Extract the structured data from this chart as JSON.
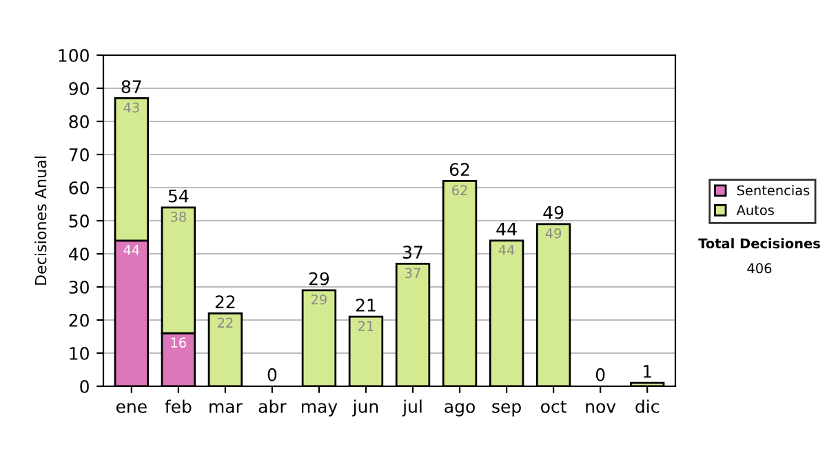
{
  "chart_data": {
    "type": "bar",
    "stacked": true,
    "ylabel": "Decisiones Anual",
    "categories": [
      "ene",
      "feb",
      "mar",
      "abr",
      "may",
      "jun",
      "jul",
      "ago",
      "sep",
      "oct",
      "nov",
      "dic"
    ],
    "series": [
      {
        "name": "Sentencias",
        "color": "#dd77bb",
        "values": [
          44,
          16,
          0,
          0,
          0,
          0,
          0,
          0,
          0,
          0,
          0,
          0
        ],
        "value_labels": [
          "44",
          "16",
          null,
          null,
          null,
          null,
          null,
          null,
          null,
          null,
          null,
          null
        ]
      },
      {
        "name": "Autos",
        "color": "#d4ea90",
        "values": [
          43,
          38,
          22,
          0,
          29,
          21,
          37,
          62,
          44,
          49,
          0,
          1
        ],
        "value_labels": [
          "43",
          "38",
          "22",
          null,
          "29",
          "21",
          "37",
          "62",
          "44",
          "49",
          null,
          null
        ]
      }
    ],
    "totals": [
      "87",
      "54",
      "22",
      "0",
      "29",
      "21",
      "37",
      "62",
      "44",
      "49",
      "0",
      "1"
    ],
    "ylim": [
      0,
      100
    ],
    "yticks": [
      0,
      10,
      20,
      30,
      40,
      50,
      60,
      70,
      80,
      90,
      100
    ],
    "grid": "y",
    "legend": "right",
    "annotations": [
      "Total Decisiones",
      "406"
    ]
  }
}
